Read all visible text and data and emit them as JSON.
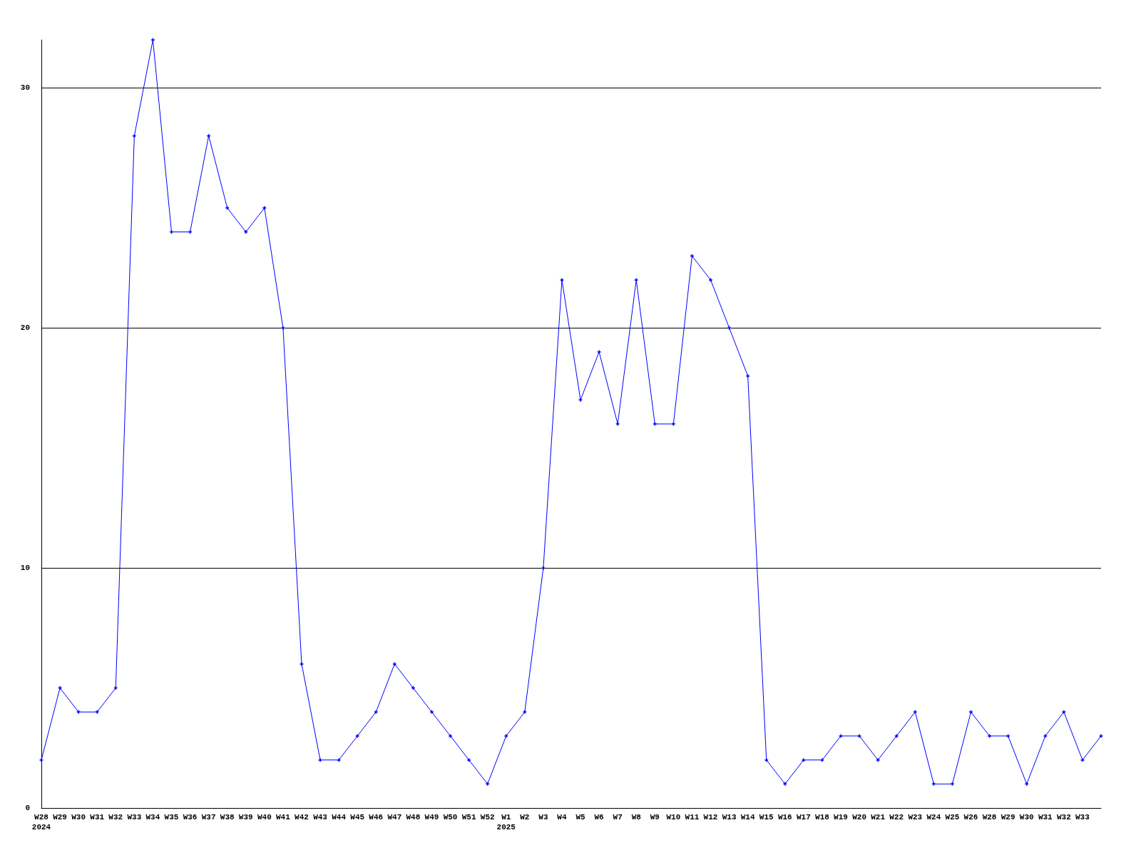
{
  "chart_data": {
    "type": "line",
    "categories": [
      "W28\n2024",
      "W29",
      "W30",
      "W31",
      "W32",
      "W33",
      "W34",
      "W35",
      "W36",
      "W37",
      "W38",
      "W39",
      "W40",
      "W41",
      "W42",
      "W43",
      "W44",
      "W45",
      "W46",
      "W47",
      "W48",
      "W49",
      "W50",
      "W51",
      "W52",
      "W1\n2025",
      "W2",
      "W3",
      "W4",
      "W5",
      "W6",
      "W7",
      "W8",
      "W9",
      "W10",
      "W11",
      "W12",
      "W13",
      "W14",
      "W15",
      "W16",
      "W17",
      "W18",
      "W19",
      "W20",
      "W21",
      "W22",
      "W23",
      "W24",
      "W25",
      "W26",
      "W28",
      "W29",
      "W30",
      "W31",
      "W32",
      "W33",
      null
    ],
    "series": [
      {
        "color": "#0000ff",
        "values": [
          2,
          5,
          4,
          4,
          5,
          28,
          32,
          24,
          24,
          28,
          25,
          24,
          25,
          20,
          6,
          2,
          2,
          3,
          4,
          6,
          5,
          4,
          3,
          2,
          1,
          3,
          4,
          10,
          22,
          17,
          19,
          16,
          22,
          16,
          16,
          23,
          22,
          20,
          18,
          2,
          1,
          2,
          2,
          3,
          3,
          2,
          3,
          4,
          1,
          1,
          4,
          3,
          3,
          1,
          3,
          4,
          2,
          3
        ]
      }
    ],
    "ylim": [
      0,
      32
    ],
    "yticks": [
      0,
      10,
      20,
      30
    ],
    "grid": "y",
    "marker": "cross"
  }
}
